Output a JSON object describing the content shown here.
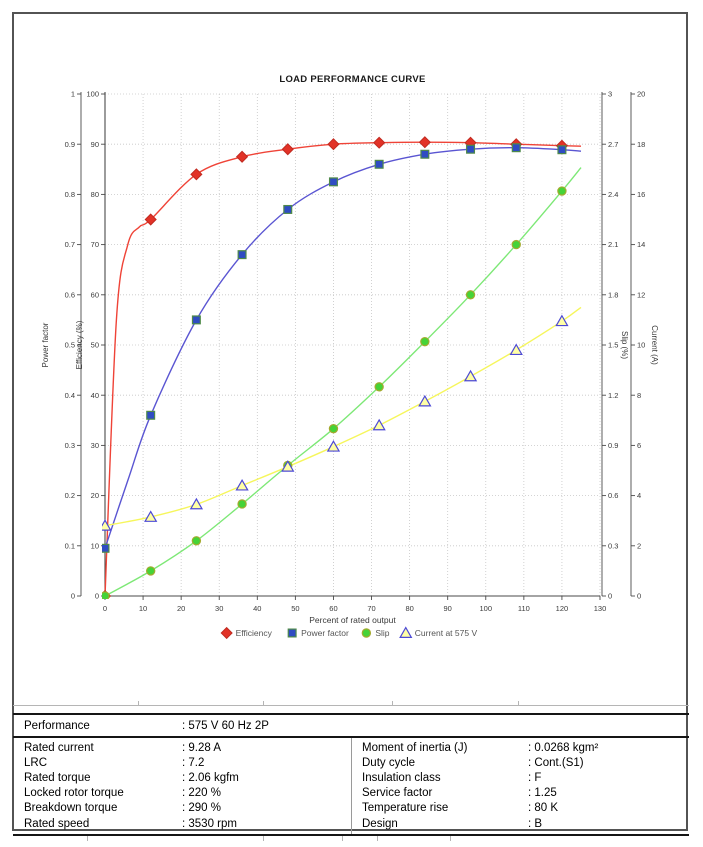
{
  "chart_data": {
    "type": "line",
    "title": "LOAD PERFORMANCE CURVE",
    "xlabel": "Percent of rated output",
    "x_axis": {
      "min": 0,
      "max": 130,
      "step": 10
    },
    "grid": true,
    "legend_position": "bottom",
    "axes": [
      {
        "id": "powerfactor",
        "title": "Power factor",
        "side": "left",
        "min": 0,
        "max": 1,
        "step": 0.1
      },
      {
        "id": "efficiency",
        "title": "Efficiency (%)",
        "side": "left",
        "min": 0,
        "max": 100,
        "step": 10
      },
      {
        "id": "slip",
        "title": "Slip (%)",
        "side": "right",
        "min": 0,
        "max": 3,
        "step": 0.3
      },
      {
        "id": "current",
        "title": "Current (A)",
        "side": "right",
        "min": 0,
        "max": 20,
        "step": 2
      }
    ],
    "series": [
      {
        "name": "Efficiency",
        "axis": "efficiency",
        "marker": "diamond",
        "line_color": "#ef4337",
        "marker_fill": "#e23227",
        "marker_stroke": "#c02a20",
        "markers": [
          [
            0,
            0
          ],
          [
            12,
            75
          ],
          [
            24,
            84
          ],
          [
            36,
            87.5
          ],
          [
            48,
            89
          ],
          [
            60,
            90
          ],
          [
            72,
            90.3
          ],
          [
            84,
            90.4
          ],
          [
            96,
            90.3
          ],
          [
            108,
            90
          ],
          [
            120,
            89.7
          ]
        ],
        "points": [
          [
            0,
            0
          ],
          [
            3,
            55
          ],
          [
            6,
            70
          ],
          [
            9,
            73.5
          ],
          [
            12,
            75
          ],
          [
            24,
            84
          ],
          [
            36,
            87.5
          ],
          [
            48,
            89
          ],
          [
            60,
            90
          ],
          [
            72,
            90.3
          ],
          [
            84,
            90.4
          ],
          [
            96,
            90.3
          ],
          [
            108,
            90
          ],
          [
            120,
            89.7
          ],
          [
            125,
            89.6
          ]
        ]
      },
      {
        "name": "Power factor",
        "axis": "powerfactor",
        "marker": "square",
        "line_color": "#5a55d2",
        "marker_fill": "#2f4cc3",
        "marker_stroke": "#4f8a4a",
        "markers": [
          [
            0,
            0.095
          ],
          [
            12,
            0.36
          ],
          [
            24,
            0.55
          ],
          [
            36,
            0.68
          ],
          [
            48,
            0.77
          ],
          [
            60,
            0.825
          ],
          [
            72,
            0.86
          ],
          [
            84,
            0.88
          ],
          [
            96,
            0.89
          ],
          [
            108,
            0.893
          ],
          [
            120,
            0.889
          ]
        ],
        "points": [
          [
            0,
            0.095
          ],
          [
            6,
            0.23
          ],
          [
            12,
            0.36
          ],
          [
            24,
            0.55
          ],
          [
            36,
            0.68
          ],
          [
            48,
            0.77
          ],
          [
            60,
            0.825
          ],
          [
            72,
            0.86
          ],
          [
            84,
            0.88
          ],
          [
            96,
            0.89
          ],
          [
            108,
            0.893
          ],
          [
            120,
            0.889
          ],
          [
            125,
            0.886
          ]
        ]
      },
      {
        "name": "Slip",
        "axis": "slip",
        "marker": "circle",
        "line_color": "#7de876",
        "marker_fill": "#45d337",
        "marker_stroke": "#a4aa2e",
        "markers": [
          [
            0,
            0
          ],
          [
            12,
            0.15
          ],
          [
            24,
            0.33
          ],
          [
            36,
            0.55
          ],
          [
            48,
            0.78
          ],
          [
            60,
            1.0
          ],
          [
            72,
            1.25
          ],
          [
            84,
            1.52
          ],
          [
            96,
            1.8
          ],
          [
            108,
            2.1
          ],
          [
            120,
            2.42
          ]
        ],
        "points": [
          [
            0,
            0
          ],
          [
            12,
            0.15
          ],
          [
            24,
            0.33
          ],
          [
            36,
            0.55
          ],
          [
            48,
            0.78
          ],
          [
            60,
            1.0
          ],
          [
            72,
            1.25
          ],
          [
            84,
            1.52
          ],
          [
            96,
            1.8
          ],
          [
            108,
            2.1
          ],
          [
            120,
            2.42
          ],
          [
            125,
            2.56
          ]
        ]
      },
      {
        "name": "Current at 575 V",
        "axis": "current",
        "marker": "triangle",
        "line_color": "#f6f65c",
        "marker_fill": "#ffffa6",
        "marker_stroke": "#4c49d6",
        "markers": [
          [
            0,
            2.8
          ],
          [
            12,
            3.15
          ],
          [
            24,
            3.65
          ],
          [
            36,
            4.4
          ],
          [
            48,
            5.15
          ],
          [
            60,
            5.95
          ],
          [
            72,
            6.8
          ],
          [
            84,
            7.75
          ],
          [
            96,
            8.75
          ],
          [
            108,
            9.8
          ],
          [
            120,
            10.95
          ]
        ],
        "points": [
          [
            0,
            2.8
          ],
          [
            12,
            3.15
          ],
          [
            24,
            3.65
          ],
          [
            36,
            4.4
          ],
          [
            48,
            5.15
          ],
          [
            60,
            5.95
          ],
          [
            72,
            6.8
          ],
          [
            84,
            7.75
          ],
          [
            96,
            8.75
          ],
          [
            108,
            9.8
          ],
          [
            120,
            10.95
          ],
          [
            125,
            11.5
          ]
        ]
      }
    ],
    "colors": {
      "grid": "#c6c6c6",
      "spine": "#4a4a4a",
      "tick_text": "#3a3a3a",
      "legend_text": "#555555",
      "title_text": "#1a1a1a"
    }
  },
  "table": {
    "performance_label": "Performance",
    "performance_value": ": 575 V 60 Hz 2P",
    "left_rows": [
      {
        "label": "Rated current",
        "value": ": 9.28 A"
      },
      {
        "label": "LRC",
        "value": ": 7.2"
      },
      {
        "label": "Rated torque",
        "value": ": 2.06 kgfm"
      },
      {
        "label": "Locked rotor torque",
        "value": ": 220 %"
      },
      {
        "label": "Breakdown torque",
        "value": ": 290 %"
      },
      {
        "label": "Rated speed",
        "value": ": 3530 rpm"
      }
    ],
    "right_rows": [
      {
        "label": "Moment of inertia (J)",
        "value": ": 0.0268 kgm²"
      },
      {
        "label": "Duty cycle",
        "value": ": Cont.(S1)"
      },
      {
        "label": "Insulation class",
        "value": ": F"
      },
      {
        "label": "Service factor",
        "value": ": 1.25"
      },
      {
        "label": "Temperature rise",
        "value": ": 80 K"
      },
      {
        "label": "Design",
        "value": ": B"
      }
    ]
  }
}
